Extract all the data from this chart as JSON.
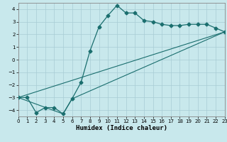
{
  "xlabel": "Humidex (Indice chaleur)",
  "background_color": "#c8e8ec",
  "grid_color": "#a8ccd4",
  "line_color": "#1a6e6e",
  "xlim": [
    0,
    23
  ],
  "ylim": [
    -4.5,
    4.5
  ],
  "xticks": [
    0,
    1,
    2,
    3,
    4,
    5,
    6,
    7,
    8,
    9,
    10,
    11,
    12,
    13,
    14,
    15,
    16,
    17,
    18,
    19,
    20,
    21,
    22,
    23
  ],
  "yticks": [
    -4,
    -3,
    -2,
    -1,
    0,
    1,
    2,
    3,
    4
  ],
  "line1_x": [
    0,
    1,
    2,
    3,
    4,
    5,
    6,
    7,
    8,
    9,
    10,
    11,
    12,
    13,
    14,
    15,
    16,
    17,
    18,
    19,
    20,
    21,
    22,
    23
  ],
  "line1_y": [
    -3.0,
    -3.0,
    -4.2,
    -3.8,
    -3.8,
    -4.3,
    -3.1,
    -1.8,
    0.7,
    2.6,
    3.5,
    4.3,
    3.7,
    3.7,
    3.1,
    3.0,
    2.8,
    2.7,
    2.7,
    2.8,
    2.8,
    2.8,
    2.5,
    2.2
  ],
  "line2_x": [
    0,
    5,
    6,
    23
  ],
  "line2_y": [
    -3.0,
    -4.3,
    -3.1,
    2.2
  ],
  "line3_x": [
    0,
    23
  ],
  "line3_y": [
    -3.0,
    2.2
  ],
  "markersize": 2.5
}
